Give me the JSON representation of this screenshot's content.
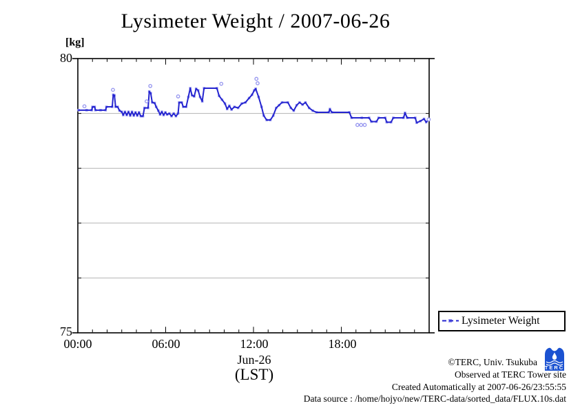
{
  "title": "Lysimeter Weight / 2007-06-26",
  "y_axis": {
    "unit_label": "[kg]",
    "max_label": "80",
    "min_label": "75"
  },
  "x_axis": {
    "tick_labels": [
      "00:00",
      "06:00",
      "12:00",
      "18:00"
    ],
    "date_label": "Jun-26",
    "tz_label": "(LST)"
  },
  "legend": {
    "label": "Lysimeter Weight"
  },
  "footer": {
    "copyright": "©TERC, Univ. Tsukuba",
    "observed": "Observed at TERC Tower site",
    "created": "Created Automatically at 2007-06-26/23:55:55",
    "source": "Data source : /home/hojyo/new/TERC-data/sorted_data/FLUX.10s.dat",
    "logo_text": "TERC"
  },
  "colors": {
    "line": "#2323cf",
    "marker": "#9a9af0",
    "grid": "#b3b3b3",
    "frame": "#000000",
    "logo_blue": "#1b52d1"
  },
  "chart_data": {
    "type": "line",
    "title": "Lysimeter Weight / 2007-06-26",
    "xlabel": "Jun-26 (LST)",
    "ylabel": "[kg]",
    "xlim": [
      0,
      24
    ],
    "ylim": [
      75,
      80
    ],
    "x_major_ticks": [
      0,
      6,
      12,
      18,
      24
    ],
    "x_minor_tick_step_hours": 1,
    "gridlines_y": [
      76,
      77,
      78,
      79
    ],
    "legend_position": "bottom-right-outside",
    "series": [
      {
        "name": "Lysimeter Weight",
        "points": [
          [
            0.05,
            79.06
          ],
          [
            0.6,
            79.06
          ],
          [
            0.95,
            79.06
          ],
          [
            1.0,
            79.12
          ],
          [
            1.15,
            79.12
          ],
          [
            1.2,
            79.06
          ],
          [
            1.55,
            79.06
          ],
          [
            1.9,
            79.06
          ],
          [
            1.95,
            79.12
          ],
          [
            2.35,
            79.12
          ],
          [
            2.42,
            79.34
          ],
          [
            2.5,
            79.33
          ],
          [
            2.58,
            79.12
          ],
          [
            2.72,
            79.12
          ],
          [
            2.85,
            79.05
          ],
          [
            3.0,
            79.03
          ],
          [
            3.1,
            78.97
          ],
          [
            3.22,
            79.03
          ],
          [
            3.34,
            78.97
          ],
          [
            3.46,
            79.03
          ],
          [
            3.58,
            78.96
          ],
          [
            3.7,
            79.03
          ],
          [
            3.82,
            78.96
          ],
          [
            3.94,
            79.02
          ],
          [
            4.06,
            78.96
          ],
          [
            4.18,
            79.02
          ],
          [
            4.3,
            78.95
          ],
          [
            4.45,
            78.95
          ],
          [
            4.55,
            79.1
          ],
          [
            4.8,
            79.1
          ],
          [
            4.88,
            79.4
          ],
          [
            4.98,
            79.37
          ],
          [
            5.08,
            79.2
          ],
          [
            5.25,
            79.19
          ],
          [
            5.35,
            79.12
          ],
          [
            5.5,
            79.05
          ],
          [
            5.62,
            78.98
          ],
          [
            5.74,
            79.03
          ],
          [
            5.86,
            78.97
          ],
          [
            5.98,
            79.02
          ],
          [
            6.1,
            78.98
          ],
          [
            6.25,
            79.0
          ],
          [
            6.4,
            78.95
          ],
          [
            6.55,
            79.0
          ],
          [
            6.7,
            78.95
          ],
          [
            6.85,
            79.0
          ],
          [
            6.92,
            79.2
          ],
          [
            7.1,
            79.2
          ],
          [
            7.2,
            79.12
          ],
          [
            7.4,
            79.12
          ],
          [
            7.55,
            79.3
          ],
          [
            7.68,
            79.46
          ],
          [
            7.8,
            79.33
          ],
          [
            7.95,
            79.31
          ],
          [
            8.08,
            79.45
          ],
          [
            8.22,
            79.42
          ],
          [
            8.35,
            79.3
          ],
          [
            8.5,
            79.22
          ],
          [
            8.62,
            79.46
          ],
          [
            9.5,
            79.46
          ],
          [
            9.65,
            79.32
          ],
          [
            9.85,
            79.25
          ],
          [
            10.05,
            79.18
          ],
          [
            10.2,
            79.08
          ],
          [
            10.35,
            79.14
          ],
          [
            10.5,
            79.07
          ],
          [
            10.7,
            79.12
          ],
          [
            10.95,
            79.1
          ],
          [
            11.2,
            79.18
          ],
          [
            11.45,
            79.2
          ],
          [
            11.7,
            79.28
          ],
          [
            11.9,
            79.34
          ],
          [
            12.05,
            79.42
          ],
          [
            12.15,
            79.45
          ],
          [
            12.35,
            79.3
          ],
          [
            12.55,
            79.12
          ],
          [
            12.7,
            78.96
          ],
          [
            12.9,
            78.88
          ],
          [
            13.15,
            78.88
          ],
          [
            13.35,
            78.96
          ],
          [
            13.55,
            79.1
          ],
          [
            13.75,
            79.15
          ],
          [
            13.95,
            79.2
          ],
          [
            14.35,
            79.2
          ],
          [
            14.55,
            79.1
          ],
          [
            14.75,
            79.05
          ],
          [
            14.95,
            79.15
          ],
          [
            15.15,
            79.2
          ],
          [
            15.35,
            79.16
          ],
          [
            15.55,
            79.2
          ],
          [
            15.8,
            79.1
          ],
          [
            16.05,
            79.05
          ],
          [
            16.3,
            79.02
          ],
          [
            17.15,
            79.02
          ],
          [
            17.22,
            79.08
          ],
          [
            17.35,
            79.02
          ],
          [
            18.55,
            79.02
          ],
          [
            18.7,
            78.92
          ],
          [
            19.4,
            78.92
          ],
          [
            19.9,
            78.92
          ],
          [
            20.05,
            78.85
          ],
          [
            20.4,
            78.85
          ],
          [
            20.55,
            78.92
          ],
          [
            21.0,
            78.92
          ],
          [
            21.1,
            78.84
          ],
          [
            21.4,
            78.84
          ],
          [
            21.55,
            78.92
          ],
          [
            22.25,
            78.92
          ],
          [
            22.35,
            79.01
          ],
          [
            22.5,
            78.92
          ],
          [
            23.05,
            78.92
          ],
          [
            23.15,
            78.83
          ],
          [
            23.4,
            78.86
          ],
          [
            23.65,
            78.9
          ],
          [
            23.8,
            78.84
          ],
          [
            23.95,
            78.88
          ]
        ],
        "outlier_points": [
          [
            0.45,
            79.13
          ],
          [
            2.4,
            79.43
          ],
          [
            4.7,
            79.22
          ],
          [
            4.95,
            79.5
          ],
          [
            6.85,
            79.31
          ],
          [
            9.8,
            79.54
          ],
          [
            12.2,
            79.63
          ],
          [
            12.28,
            79.55
          ],
          [
            19.1,
            78.79
          ],
          [
            19.35,
            78.79
          ],
          [
            19.6,
            78.79
          ],
          [
            23.97,
            78.89
          ]
        ]
      }
    ]
  }
}
